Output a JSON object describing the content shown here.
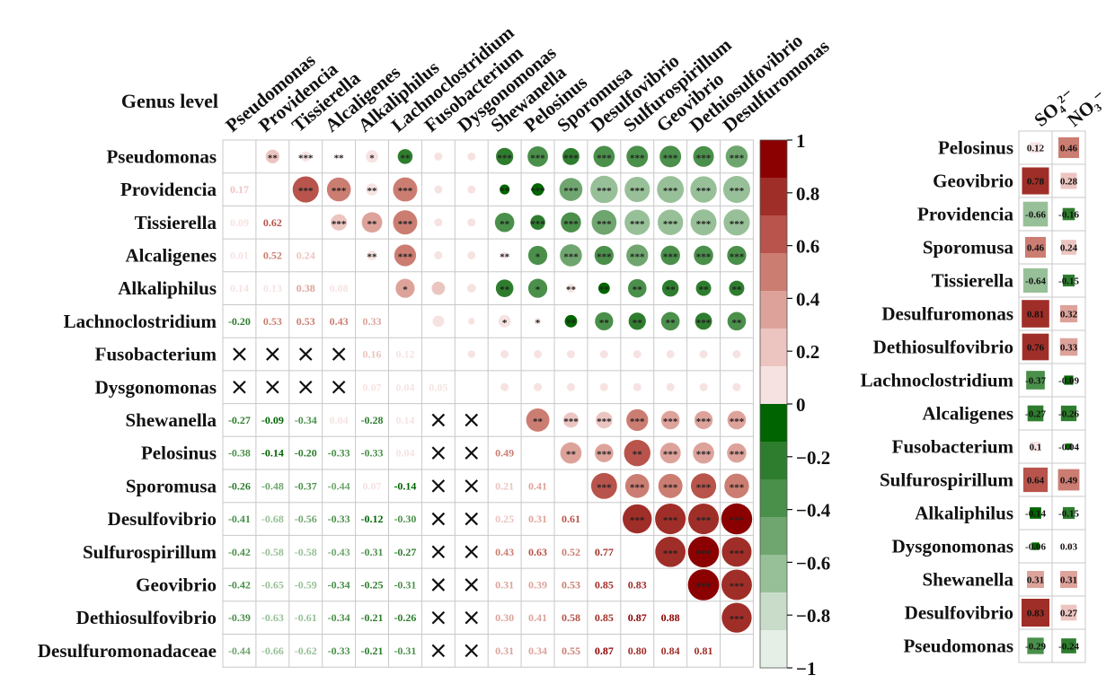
{
  "chart_data": [
    {
      "type": "heatmap",
      "title": "Genus level",
      "genera_columns": [
        "Pseudomonas",
        "Providencia",
        "Tissierella",
        "Alcaligenes",
        "Alkaliphilus",
        "Lachnoclostridium",
        "Fusobacterium",
        "Dysgonomonas",
        "Shewanella",
        "Pelosinus",
        "Sporomusa",
        "Desulfovibrio",
        "Sulfurospirillum",
        "Geovibrio",
        "Dethiosulfovibrio",
        "Desulfuromonas"
      ],
      "genera_rows": [
        "Pseudomonas",
        "Providencia",
        "Tissierella",
        "Alcaligenes",
        "Alkaliphilus",
        "Lachnoclostridium",
        "Fusobacterium",
        "Dysgonomonas",
        "Shewanella",
        "Pelosinus",
        "Sporomusa",
        "Desulfovibrio",
        "Sulfurospirillum",
        "Geovibrio",
        "Dethiosulfovibrio",
        "Desulfuromonadaceae"
      ],
      "lower_matrix": [
        [],
        [
          "0.17"
        ],
        [
          "0.09",
          "0.62"
        ],
        [
          "0.01",
          "0.52",
          "0.24"
        ],
        [
          "0.14",
          "0.13",
          "0.38",
          "0.08"
        ],
        [
          "-0.20",
          "0.53",
          "0.53",
          "0.43",
          "0.33"
        ],
        [
          "X",
          "X",
          "X",
          "X",
          "0.16",
          "0.12"
        ],
        [
          "X",
          "X",
          "X",
          "X",
          "0.07",
          "0.04",
          "0.05"
        ],
        [
          "-0.27",
          "-0.09",
          "-0.34",
          "0.04",
          "-0.28",
          "0.14",
          "X",
          "X"
        ],
        [
          "-0.38",
          "-0.14",
          "-0.20",
          "-0.33",
          "-0.33",
          "0.04",
          "X",
          "X",
          "0.49"
        ],
        [
          "-0.26",
          "-0.48",
          "-0.37",
          "-0.44",
          "0.07",
          "-0.14",
          "X",
          "X",
          "0.21",
          "0.41"
        ],
        [
          "-0.41",
          "-0.68",
          "-0.56",
          "-0.33",
          "-0.12",
          "-0.30",
          "X",
          "X",
          "0.25",
          "0.31",
          "0.61"
        ],
        [
          "-0.42",
          "-0.58",
          "-0.58",
          "-0.43",
          "-0.31",
          "-0.27",
          "X",
          "X",
          "0.43",
          "0.63",
          "0.52",
          "0.77"
        ],
        [
          "-0.42",
          "-0.65",
          "-0.59",
          "-0.34",
          "-0.25",
          "-0.31",
          "X",
          "X",
          "0.31",
          "0.39",
          "0.53",
          "0.85",
          "0.83"
        ],
        [
          "-0.39",
          "-0.63",
          "-0.61",
          "-0.34",
          "-0.21",
          "-0.26",
          "X",
          "X",
          "0.30",
          "0.41",
          "0.58",
          "0.85",
          "0.87",
          "0.88"
        ],
        [
          "-0.44",
          "-0.66",
          "-0.62",
          "-0.33",
          "-0.21",
          "-0.31",
          "X",
          "X",
          "0.31",
          "0.34",
          "0.55",
          "0.87",
          "0.80",
          "0.84",
          "0.81"
        ]
      ],
      "upper_matrix": [
        [
          "",
          "**",
          "***",
          "**",
          "*",
          "**",
          "",
          "",
          "***",
          "***",
          "***",
          "***",
          "***",
          "***",
          "***",
          "***"
        ],
        [
          "",
          "",
          "***",
          "***",
          "**",
          "***",
          "",
          "",
          "**",
          "***",
          "***",
          "***",
          "***",
          "***",
          "***",
          "***"
        ],
        [
          "",
          "",
          "",
          "***",
          "**",
          "***",
          "",
          "",
          "**",
          "***",
          "***",
          "***",
          "***",
          "***",
          "***",
          "***"
        ],
        [
          "",
          "",
          "",
          "",
          "**",
          "***",
          "",
          "",
          "**",
          "*",
          "***",
          "***",
          "***",
          "***",
          "***",
          "***"
        ],
        [
          "",
          "",
          "",
          "",
          "",
          "*",
          "",
          "",
          "**",
          "*",
          "**",
          "**",
          "**",
          "**",
          "**",
          "**"
        ],
        [
          "",
          "",
          "",
          "",
          "",
          "",
          "",
          "",
          "*",
          "*",
          "**",
          "**",
          "**",
          "**",
          "***",
          "**"
        ],
        [
          "",
          "",
          "",
          "",
          "",
          "",
          "",
          "",
          "",
          "",
          "",
          "",
          "",
          "",
          "",
          ""
        ],
        [
          "",
          "",
          "",
          "",
          "",
          "",
          "",
          "",
          "",
          "",
          "",
          "",
          "",
          "",
          "",
          ""
        ],
        [
          "",
          "",
          "",
          "",
          "",
          "",
          "",
          "",
          "",
          "**",
          "***",
          "***",
          "***",
          "***",
          "***",
          "***"
        ],
        [
          "",
          "",
          "",
          "",
          "",
          "",
          "",
          "",
          "",
          "",
          "**",
          "***",
          "**",
          "***",
          "***",
          "***"
        ],
        [
          "",
          "",
          "",
          "",
          "",
          "",
          "",
          "",
          "",
          "",
          "",
          "***",
          "***",
          "***",
          "***",
          "***"
        ],
        [
          "",
          "",
          "",
          "",
          "",
          "",
          "",
          "",
          "",
          "",
          "",
          "",
          "***",
          "***",
          "***",
          "***"
        ],
        [
          "",
          "",
          "",
          "",
          "",
          "",
          "",
          "",
          "",
          "",
          "",
          "",
          "",
          "***",
          "***",
          "***"
        ],
        [
          "",
          "",
          "",
          "",
          "",
          "",
          "",
          "",
          "",
          "",
          "",
          "",
          "",
          "",
          "***",
          "***"
        ],
        [
          "",
          "",
          "",
          "",
          "",
          "",
          "",
          "",
          "",
          "",
          "",
          "",
          "",
          "",
          "",
          "***"
        ],
        [
          "",
          "",
          "",
          "",
          "",
          "",
          "",
          "",
          "",
          "",
          "",
          "",
          "",
          "",
          "",
          ""
        ]
      ],
      "colorbar": {
        "range": [
          -1,
          1
        ],
        "ticks": [
          "1",
          "0.8",
          "0.6",
          "0.4",
          "0.2",
          "0",
          "-0.2",
          "-0.4",
          "-0.6",
          "-0.8",
          "-1"
        ]
      }
    },
    {
      "type": "heatmap",
      "columns": [
        "SO₄²⁻",
        "NO₃⁻"
      ],
      "rows": [
        {
          "genus": "Pelosinus",
          "values": [
            "0.12",
            "0.46"
          ]
        },
        {
          "genus": "Geovibrio",
          "values": [
            "0.78",
            "0.28"
          ]
        },
        {
          "genus": "Providencia",
          "values": [
            "-0.66",
            "-0.16"
          ]
        },
        {
          "genus": "Sporomusa",
          "values": [
            "0.46",
            "0.24"
          ]
        },
        {
          "genus": "Tissierella",
          "values": [
            "-0.64",
            "-0.15"
          ]
        },
        {
          "genus": "Desulfuromonas",
          "values": [
            "0.81",
            "0.32"
          ]
        },
        {
          "genus": "Dethiosulfovibrio",
          "values": [
            "0.76",
            "0.33"
          ]
        },
        {
          "genus": "Lachnoclostridium",
          "values": [
            "-0.37",
            "-0.09"
          ]
        },
        {
          "genus": "Alcaligenes",
          "values": [
            "-0.27",
            "-0.26"
          ]
        },
        {
          "genus": "Fusobacterium",
          "values": [
            "0.1",
            "-0.04"
          ]
        },
        {
          "genus": "Sulfurospirillum",
          "values": [
            "0.64",
            "0.49"
          ]
        },
        {
          "genus": "Alkaliphilus",
          "values": [
            "-0.14",
            "-0.15"
          ]
        },
        {
          "genus": "Dysgonomonas",
          "values": [
            "-0.06",
            "0.03"
          ]
        },
        {
          "genus": "Shewanella",
          "values": [
            "0.31",
            "0.31"
          ]
        },
        {
          "genus": "Desulfovibrio",
          "values": [
            "0.83",
            "0.27"
          ]
        },
        {
          "genus": "Pseudomonas",
          "values": [
            "-0.29",
            "-0.24"
          ]
        }
      ]
    }
  ],
  "colors": {
    "negative": [
      "#006400",
      "#2e7d2e",
      "#4a8f4a",
      "#6fa66f",
      "#98c098",
      "#c9dcc9",
      "#e6efe6"
    ],
    "positive": [
      "#f6e3e1",
      "#ecc5c0",
      "#dda39b",
      "#cc7d72",
      "#b8544b",
      "#a02e28",
      "#8b0000"
    ],
    "grid": "#c8c8c8"
  }
}
